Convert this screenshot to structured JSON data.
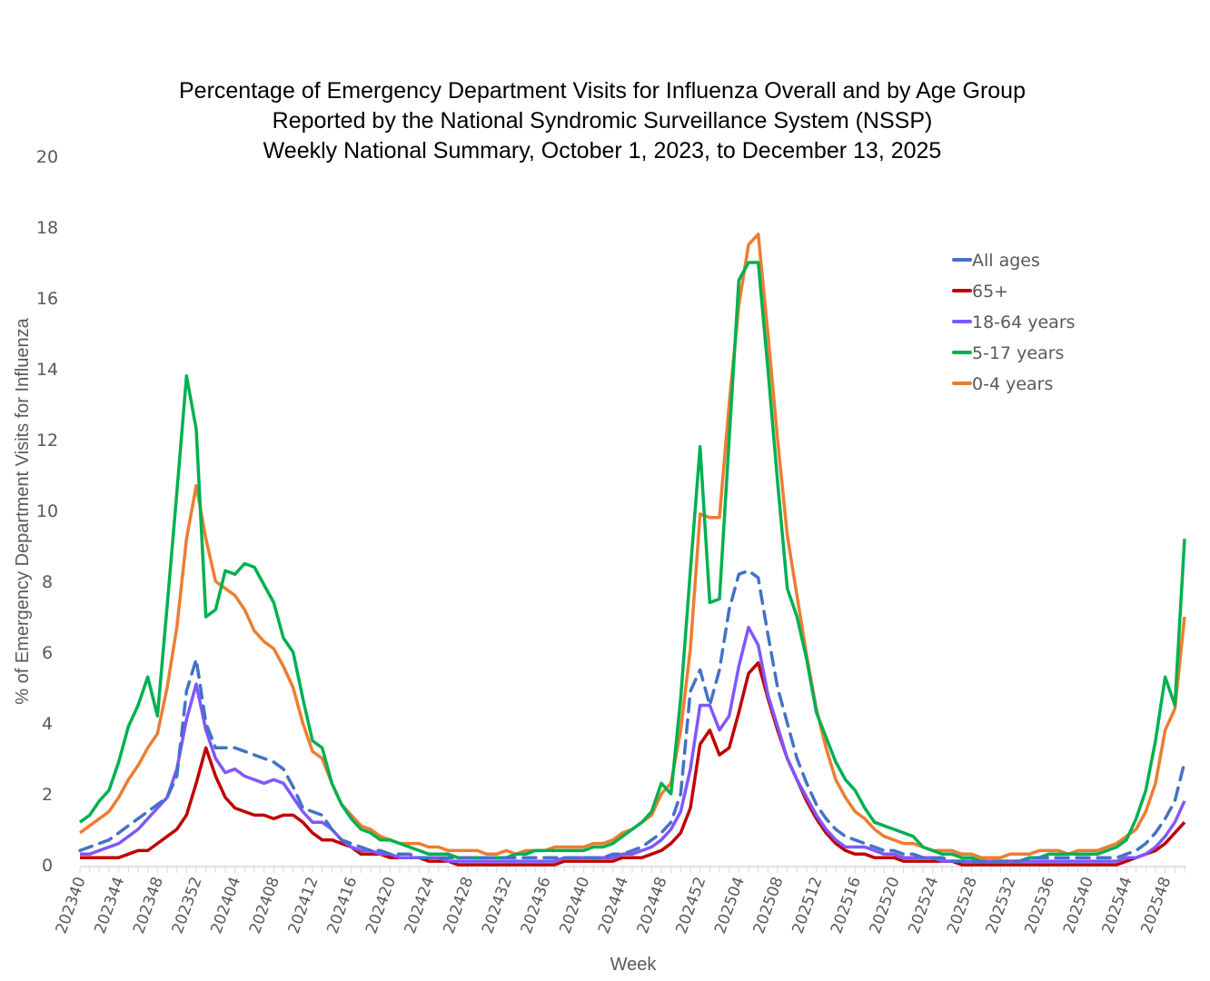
{
  "chart_data": {
    "type": "line",
    "title": [
      "Percentage of Emergency Department Visits for Influenza Overall and by Age Group",
      "Reported by the National Syndromic Surveillance System (NSSP)",
      "Weekly National Summary, October 1, 2023, to  December 13, 2025"
    ],
    "xlabel": "Week",
    "ylabel": "% of Emergency Department Visits for Influenza",
    "ylim": [
      0,
      20
    ],
    "yticks": [
      "0",
      "2",
      "4",
      "6",
      "8",
      "10",
      "12",
      "14",
      "16",
      "18",
      "20"
    ],
    "xtick_labels": [
      "202340",
      "202344",
      "202348",
      "202352",
      "202404",
      "202408",
      "202412",
      "202416",
      "202420",
      "202424",
      "202428",
      "202432",
      "202436",
      "202440",
      "202444",
      "202448",
      "202452",
      "202504",
      "202508",
      "202512",
      "202516",
      "202520",
      "202524",
      "202528",
      "202532",
      "202536",
      "202540",
      "202544",
      "202548"
    ],
    "grid": false,
    "legend_position": "top-right",
    "x": [
      "202340",
      "202341",
      "202342",
      "202343",
      "202344",
      "202345",
      "202346",
      "202347",
      "202348",
      "202349",
      "202350",
      "202351",
      "202352",
      "202401",
      "202402",
      "202403",
      "202404",
      "202405",
      "202406",
      "202407",
      "202408",
      "202409",
      "202410",
      "202411",
      "202412",
      "202413",
      "202414",
      "202415",
      "202416",
      "202417",
      "202418",
      "202419",
      "202420",
      "202421",
      "202422",
      "202423",
      "202424",
      "202425",
      "202426",
      "202427",
      "202428",
      "202429",
      "202430",
      "202431",
      "202432",
      "202433",
      "202434",
      "202435",
      "202436",
      "202437",
      "202438",
      "202439",
      "202440",
      "202441",
      "202442",
      "202443",
      "202444",
      "202445",
      "202446",
      "202447",
      "202448",
      "202449",
      "202450",
      "202451",
      "202452",
      "202501",
      "202502",
      "202503",
      "202504",
      "202505",
      "202506",
      "202507",
      "202508",
      "202509",
      "202510",
      "202511",
      "202512",
      "202513",
      "202514",
      "202515",
      "202516",
      "202517",
      "202518",
      "202519",
      "202520",
      "202521",
      "202522",
      "202523",
      "202524",
      "202525",
      "202526",
      "202527",
      "202528",
      "202529",
      "202530",
      "202531",
      "202532",
      "202533",
      "202534",
      "202535",
      "202536",
      "202537",
      "202538",
      "202539",
      "202540",
      "202541",
      "202542",
      "202543",
      "202544",
      "202545",
      "202546",
      "202547",
      "202548",
      "202549",
      "202550"
    ],
    "series": [
      {
        "name": "All ages",
        "color": "#4472C4",
        "dashed": true,
        "values": [
          0.4,
          0.5,
          0.6,
          0.7,
          0.9,
          1.1,
          1.3,
          1.5,
          1.7,
          1.9,
          2.5,
          4.9,
          5.8,
          4.0,
          3.3,
          3.3,
          3.3,
          3.2,
          3.1,
          3.0,
          2.9,
          2.7,
          2.2,
          1.6,
          1.5,
          1.4,
          1.0,
          0.7,
          0.6,
          0.5,
          0.4,
          0.4,
          0.3,
          0.3,
          0.3,
          0.2,
          0.2,
          0.2,
          0.2,
          0.2,
          0.2,
          0.2,
          0.2,
          0.2,
          0.2,
          0.2,
          0.2,
          0.2,
          0.2,
          0.2,
          0.2,
          0.2,
          0.2,
          0.2,
          0.2,
          0.3,
          0.3,
          0.4,
          0.5,
          0.7,
          0.9,
          1.2,
          2.0,
          4.9,
          5.5,
          4.5,
          5.5,
          7.2,
          8.2,
          8.3,
          8.1,
          6.5,
          5.0,
          4.0,
          3.0,
          2.3,
          1.7,
          1.3,
          1.0,
          0.8,
          0.7,
          0.6,
          0.5,
          0.4,
          0.4,
          0.3,
          0.3,
          0.2,
          0.2,
          0.2,
          0.1,
          0.1,
          0.1,
          0.1,
          0.1,
          0.1,
          0.1,
          0.1,
          0.2,
          0.2,
          0.2,
          0.2,
          0.2,
          0.2,
          0.2,
          0.2,
          0.2,
          0.2,
          0.3,
          0.4,
          0.6,
          0.9,
          1.3,
          1.8,
          2.9
        ]
      },
      {
        "name": "65+",
        "color": "#C00000",
        "dashed": false,
        "values": [
          0.2,
          0.2,
          0.2,
          0.2,
          0.2,
          0.3,
          0.4,
          0.4,
          0.6,
          0.8,
          1.0,
          1.4,
          2.3,
          3.3,
          2.5,
          1.9,
          1.6,
          1.5,
          1.4,
          1.4,
          1.3,
          1.4,
          1.4,
          1.2,
          0.9,
          0.7,
          0.7,
          0.6,
          0.5,
          0.3,
          0.3,
          0.3,
          0.2,
          0.2,
          0.2,
          0.2,
          0.1,
          0.1,
          0.1,
          0.0,
          0.0,
          0.0,
          0.0,
          0.0,
          0.0,
          0.0,
          0.0,
          0.0,
          0.0,
          0.0,
          0.1,
          0.1,
          0.1,
          0.1,
          0.1,
          0.1,
          0.2,
          0.2,
          0.2,
          0.3,
          0.4,
          0.6,
          0.9,
          1.6,
          3.4,
          3.8,
          3.1,
          3.3,
          4.3,
          5.4,
          5.7,
          4.7,
          3.8,
          3.0,
          2.4,
          1.8,
          1.3,
          0.9,
          0.6,
          0.4,
          0.3,
          0.3,
          0.2,
          0.2,
          0.2,
          0.1,
          0.1,
          0.1,
          0.1,
          0.1,
          0.1,
          0.0,
          0.0,
          0.0,
          0.0,
          0.0,
          0.0,
          0.0,
          0.0,
          0.0,
          0.0,
          0.0,
          0.0,
          0.0,
          0.0,
          0.0,
          0.0,
          0.0,
          0.1,
          0.2,
          0.3,
          0.4,
          0.6,
          0.9,
          1.2
        ]
      },
      {
        "name": "18-64 years",
        "color": "#7F57FF",
        "dashed": false,
        "values": [
          0.3,
          0.3,
          0.4,
          0.5,
          0.6,
          0.8,
          1.0,
          1.3,
          1.6,
          1.9,
          2.7,
          4.1,
          5.1,
          3.8,
          3.0,
          2.6,
          2.7,
          2.5,
          2.4,
          2.3,
          2.4,
          2.3,
          1.9,
          1.5,
          1.2,
          1.2,
          1.0,
          0.7,
          0.5,
          0.4,
          0.4,
          0.3,
          0.3,
          0.2,
          0.2,
          0.2,
          0.2,
          0.2,
          0.1,
          0.1,
          0.1,
          0.1,
          0.1,
          0.1,
          0.1,
          0.1,
          0.1,
          0.1,
          0.1,
          0.1,
          0.2,
          0.2,
          0.2,
          0.2,
          0.2,
          0.2,
          0.3,
          0.3,
          0.4,
          0.5,
          0.7,
          1.0,
          1.5,
          2.7,
          4.5,
          4.5,
          3.8,
          4.2,
          5.6,
          6.7,
          6.2,
          4.8,
          3.9,
          3.0,
          2.4,
          1.9,
          1.4,
          1.0,
          0.7,
          0.5,
          0.5,
          0.5,
          0.4,
          0.3,
          0.3,
          0.2,
          0.2,
          0.2,
          0.2,
          0.1,
          0.1,
          0.1,
          0.1,
          0.1,
          0.1,
          0.1,
          0.1,
          0.1,
          0.1,
          0.1,
          0.1,
          0.1,
          0.1,
          0.1,
          0.1,
          0.1,
          0.1,
          0.1,
          0.2,
          0.2,
          0.3,
          0.5,
          0.8,
          1.2,
          1.8
        ]
      },
      {
        "name": "5-17 years",
        "color": "#00B050",
        "dashed": false,
        "values": [
          1.2,
          1.4,
          1.8,
          2.1,
          2.9,
          3.9,
          4.5,
          5.3,
          4.2,
          7.3,
          10.5,
          13.8,
          12.3,
          7.0,
          7.2,
          8.3,
          8.2,
          8.5,
          8.4,
          7.9,
          7.4,
          6.4,
          6.0,
          4.7,
          3.5,
          3.3,
          2.3,
          1.7,
          1.3,
          1.0,
          0.9,
          0.7,
          0.7,
          0.6,
          0.5,
          0.4,
          0.3,
          0.3,
          0.3,
          0.2,
          0.2,
          0.2,
          0.2,
          0.2,
          0.2,
          0.3,
          0.3,
          0.4,
          0.4,
          0.4,
          0.4,
          0.4,
          0.4,
          0.5,
          0.5,
          0.6,
          0.8,
          1.0,
          1.2,
          1.5,
          2.3,
          2.0,
          4.7,
          8.3,
          11.8,
          7.4,
          7.5,
          12.0,
          16.5,
          17.0,
          17.0,
          14.0,
          10.8,
          7.8,
          7.0,
          5.8,
          4.3,
          3.6,
          2.9,
          2.4,
          2.1,
          1.6,
          1.2,
          1.1,
          1.0,
          0.9,
          0.8,
          0.5,
          0.4,
          0.3,
          0.3,
          0.2,
          0.2,
          0.1,
          0.1,
          0.1,
          0.1,
          0.1,
          0.2,
          0.2,
          0.3,
          0.3,
          0.3,
          0.3,
          0.3,
          0.3,
          0.4,
          0.5,
          0.7,
          1.3,
          2.1,
          3.5,
          5.3,
          4.5,
          9.2
        ]
      },
      {
        "name": "0-4 years",
        "color": "#ED7D31",
        "dashed": false,
        "values": [
          0.9,
          1.1,
          1.3,
          1.5,
          1.9,
          2.4,
          2.8,
          3.3,
          3.7,
          5.0,
          6.7,
          9.2,
          10.7,
          9.2,
          8.0,
          7.8,
          7.6,
          7.2,
          6.6,
          6.3,
          6.1,
          5.6,
          5.0,
          4.0,
          3.2,
          3.0,
          2.3,
          1.7,
          1.4,
          1.1,
          1.0,
          0.8,
          0.7,
          0.6,
          0.6,
          0.6,
          0.5,
          0.5,
          0.4,
          0.4,
          0.4,
          0.4,
          0.3,
          0.3,
          0.4,
          0.3,
          0.4,
          0.4,
          0.4,
          0.5,
          0.5,
          0.5,
          0.5,
          0.6,
          0.6,
          0.7,
          0.9,
          1.0,
          1.2,
          1.4,
          2.0,
          2.3,
          3.8,
          6.1,
          9.9,
          9.8,
          9.8,
          13.0,
          15.8,
          17.5,
          17.8,
          15.0,
          12.0,
          9.3,
          7.6,
          5.9,
          4.4,
          3.3,
          2.4,
          1.9,
          1.5,
          1.3,
          1.0,
          0.8,
          0.7,
          0.6,
          0.6,
          0.5,
          0.4,
          0.4,
          0.4,
          0.3,
          0.3,
          0.2,
          0.2,
          0.2,
          0.3,
          0.3,
          0.3,
          0.4,
          0.4,
          0.4,
          0.3,
          0.4,
          0.4,
          0.4,
          0.5,
          0.6,
          0.8,
          1.0,
          1.5,
          2.3,
          3.8,
          4.4,
          7.0
        ]
      }
    ]
  }
}
